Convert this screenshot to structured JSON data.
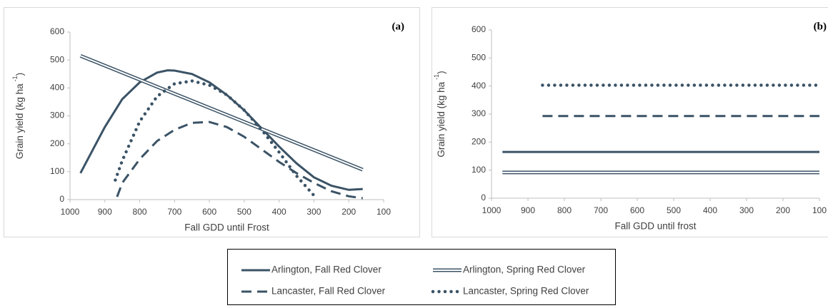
{
  "chart_data": [
    {
      "type": "line",
      "title": "(a)",
      "xlabel": "Fall GDD until Frost",
      "ylabel": "Grain yield (kg ha",
      "ylabel_sup": "-1",
      "ylabel_end": ")",
      "xlim": [
        1000,
        100
      ],
      "xticks": [
        1000,
        900,
        800,
        700,
        600,
        500,
        400,
        300,
        200,
        100
      ],
      "ylim": [
        0,
        600
      ],
      "yticks": [
        0,
        100,
        200,
        300,
        400,
        500,
        600
      ],
      "legend": "bottom",
      "series": [
        {
          "name": "Arlington, Fall Red Clover",
          "color": "#3b5366",
          "style": "solid",
          "x": [
            970,
            900,
            850,
            800,
            750,
            720,
            700,
            650,
            600,
            550,
            500,
            450,
            400,
            350,
            300,
            250,
            200,
            160
          ],
          "values": [
            95,
            260,
            360,
            420,
            455,
            463,
            462,
            450,
            420,
            375,
            320,
            255,
            190,
            130,
            80,
            50,
            35,
            38
          ]
        },
        {
          "name": "Arlington, Spring Red Clover",
          "color": "#3b5366",
          "style": "double",
          "x": [
            970,
            160
          ],
          "values": [
            515,
            107
          ]
        },
        {
          "name": "Lancaster, Fall Red Clover",
          "color": "#3b5366",
          "style": "dashed",
          "x": [
            865,
            850,
            800,
            750,
            700,
            650,
            600,
            550,
            500,
            450,
            400,
            350,
            300,
            250,
            200,
            160
          ],
          "values": [
            10,
            60,
            145,
            210,
            250,
            275,
            278,
            260,
            225,
            180,
            135,
            95,
            60,
            30,
            12,
            5
          ]
        },
        {
          "name": "Lancaster, Spring Red Clover",
          "color": "#3b5366",
          "style": "dotted",
          "x": [
            870,
            850,
            800,
            750,
            700,
            650,
            600,
            550,
            500,
            450,
            400,
            350,
            300,
            295
          ],
          "values": [
            70,
            140,
            280,
            370,
            415,
            425,
            410,
            375,
            320,
            250,
            170,
            85,
            15,
            0
          ]
        }
      ]
    },
    {
      "type": "line",
      "title": "(b)",
      "xlabel": "Fall GDD until frost",
      "ylabel": "Grain yield (kg ha",
      "ylabel_sup": "-1",
      "ylabel_end": ")",
      "xlim": [
        1000,
        100
      ],
      "xticks": [
        1000,
        900,
        800,
        700,
        600,
        500,
        400,
        300,
        200,
        100
      ],
      "ylim": [
        0,
        600
      ],
      "yticks": [
        0,
        100,
        200,
        300,
        400,
        500,
        600
      ],
      "series": [
        {
          "color": "#3b5366",
          "style": "solid",
          "x": [
            970,
            100
          ],
          "values": [
            165,
            165
          ]
        },
        {
          "color": "#3b5366",
          "style": "double",
          "x": [
            970,
            100
          ],
          "values": [
            92,
            92
          ]
        },
        {
          "color": "#3b5366",
          "style": "dashed",
          "x": [
            860,
            100
          ],
          "values": [
            293,
            293
          ]
        },
        {
          "color": "#3b5366",
          "style": "dotted",
          "x": [
            860,
            100
          ],
          "values": [
            403,
            403
          ]
        }
      ]
    }
  ]
}
